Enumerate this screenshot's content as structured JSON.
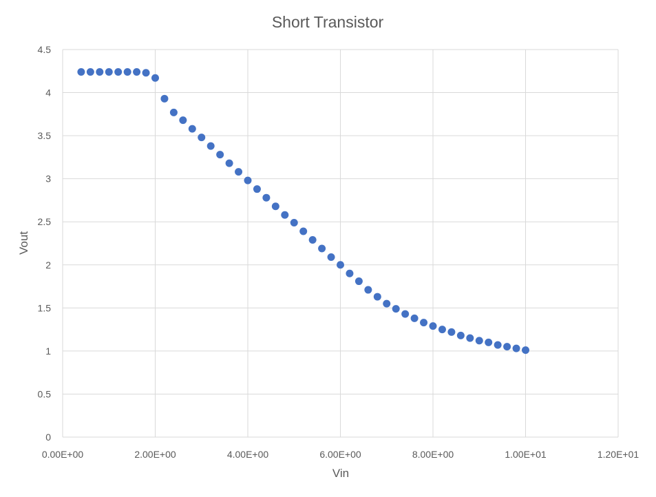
{
  "chart_data": {
    "type": "scatter",
    "title": "Short Transistor",
    "xlabel": "Vin",
    "ylabel": "Vout",
    "xlim": [
      0,
      12
    ],
    "ylim": [
      0,
      4.5
    ],
    "x_ticks": [
      0,
      2,
      4,
      6,
      8,
      10,
      12
    ],
    "x_tick_labels": [
      "0.00E+00",
      "2.00E+00",
      "4.00E+00",
      "6.00E+00",
      "8.00E+00",
      "1.00E+01",
      "1.20E+01"
    ],
    "y_ticks": [
      0,
      0.5,
      1,
      1.5,
      2,
      2.5,
      3,
      3.5,
      4,
      4.5
    ],
    "y_tick_labels": [
      "0",
      "0.5",
      "1",
      "1.5",
      "2",
      "2.5",
      "3",
      "3.5",
      "4",
      "4.5"
    ],
    "grid": true,
    "marker_color": "#4472c4",
    "series": [
      {
        "x": [
          0.4,
          0.6,
          0.8,
          1.0,
          1.2,
          1.4,
          1.6,
          1.8,
          2.0,
          2.2,
          2.4,
          2.6,
          2.8,
          3.0,
          3.2,
          3.4,
          3.6,
          3.8,
          4.0,
          4.2,
          4.4,
          4.6,
          4.8,
          5.0,
          5.2,
          5.4,
          5.6,
          5.8,
          6.0,
          6.2,
          6.4,
          6.6,
          6.8,
          7.0,
          7.2,
          7.4,
          7.6,
          7.8,
          8.0,
          8.2,
          8.4,
          8.6,
          8.8,
          9.0,
          9.2,
          9.4,
          9.6,
          9.8,
          10.0
        ],
        "y": [
          4.24,
          4.24,
          4.24,
          4.24,
          4.24,
          4.24,
          4.24,
          4.23,
          4.17,
          3.93,
          3.77,
          3.68,
          3.58,
          3.48,
          3.38,
          3.28,
          3.18,
          3.08,
          2.98,
          2.88,
          2.78,
          2.68,
          2.58,
          2.49,
          2.39,
          2.29,
          2.19,
          2.09,
          2.0,
          1.9,
          1.81,
          1.71,
          1.63,
          1.55,
          1.49,
          1.43,
          1.38,
          1.33,
          1.29,
          1.25,
          1.22,
          1.18,
          1.15,
          1.12,
          1.1,
          1.07,
          1.05,
          1.03,
          1.01
        ]
      }
    ]
  }
}
